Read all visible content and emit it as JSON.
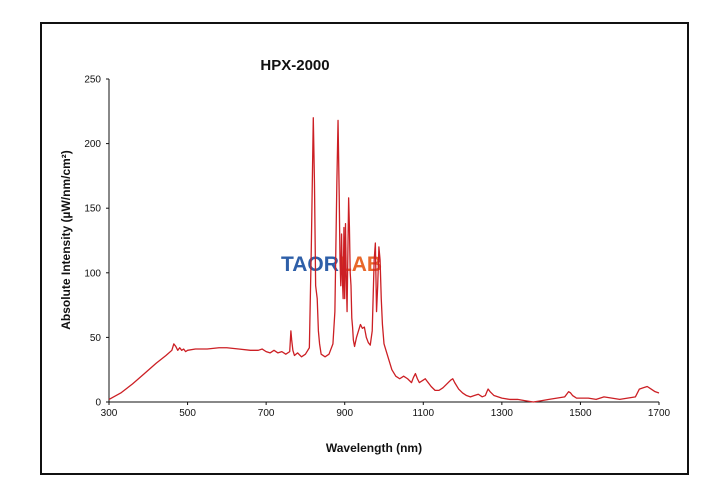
{
  "chart_data": {
    "type": "line",
    "title": "HPX-2000",
    "xlabel": "Wavelength (nm)",
    "ylabel": "Absolute Intensity  (µW/nm/cm²)",
    "xlim": [
      300,
      1700
    ],
    "ylim": [
      0,
      250
    ],
    "x_ticks": [
      "300",
      "500",
      "700",
      "900",
      "1100",
      "1300",
      "1500",
      "1700"
    ],
    "y_ticks": [
      "0",
      "50",
      "100",
      "150",
      "200",
      "250"
    ],
    "grid": false,
    "legend": "none",
    "line_color": "#cc1f24",
    "series": [
      {
        "x": [
          300,
          330,
          360,
          390,
          420,
          445,
          460,
          465,
          470,
          475,
          480,
          485,
          490,
          495,
          500,
          520,
          550,
          580,
          600,
          630,
          660,
          680,
          690,
          700,
          710,
          720,
          730,
          740,
          750,
          760,
          763,
          765,
          768,
          772,
          780,
          790,
          800,
          810,
          815,
          820,
          823,
          826,
          830,
          833,
          836,
          840,
          850,
          860,
          870,
          875,
          880,
          883,
          886,
          888,
          890,
          892,
          894,
          896,
          898,
          900,
          902,
          904,
          906,
          908,
          910,
          912,
          914,
          916,
          918,
          920,
          922,
          925,
          930,
          940,
          945,
          950,
          955,
          960,
          965,
          970,
          975,
          978,
          981,
          984,
          987,
          990,
          993,
          996,
          1000,
          1005,
          1010,
          1020,
          1030,
          1040,
          1050,
          1060,
          1070,
          1075,
          1080,
          1085,
          1090,
          1100,
          1105,
          1110,
          1120,
          1130,
          1140,
          1150,
          1160,
          1170,
          1175,
          1180,
          1190,
          1200,
          1210,
          1220,
          1230,
          1240,
          1250,
          1258,
          1262,
          1265,
          1270,
          1280,
          1300,
          1320,
          1340,
          1360,
          1380,
          1400,
          1420,
          1440,
          1460,
          1465,
          1470,
          1475,
          1480,
          1485,
          1490,
          1500,
          1520,
          1540,
          1560,
          1580,
          1600,
          1620,
          1640,
          1650,
          1660,
          1670,
          1680,
          1690,
          1700
        ],
        "values": [
          2,
          7,
          14,
          22,
          30,
          36,
          40,
          45,
          43,
          40,
          42,
          40,
          41,
          39,
          40,
          41,
          41,
          42,
          42,
          41,
          40,
          40,
          41,
          39,
          38,
          40,
          38,
          39,
          37,
          39,
          55,
          48,
          40,
          36,
          38,
          35,
          37,
          42,
          120,
          220,
          170,
          90,
          80,
          55,
          45,
          37,
          35,
          37,
          45,
          70,
          170,
          218,
          160,
          110,
          90,
          130,
          95,
          80,
          135,
          80,
          138,
          95,
          70,
          115,
          158,
          135,
          100,
          90,
          65,
          58,
          48,
          43,
          50,
          60,
          57,
          58,
          50,
          46,
          44,
          55,
          110,
          123,
          70,
          90,
          120,
          110,
          80,
          60,
          45,
          40,
          35,
          25,
          20,
          18,
          20,
          18,
          15,
          19,
          22,
          18,
          15,
          17,
          18,
          16,
          12,
          9,
          9,
          11,
          14,
          17,
          18,
          15,
          10,
          7,
          5,
          4,
          5,
          6,
          4,
          5,
          8,
          10,
          8,
          5,
          3,
          2,
          2,
          1,
          0,
          1,
          2,
          3,
          4,
          6,
          8,
          7,
          5,
          4,
          3,
          3,
          3,
          2,
          4,
          3,
          2,
          3,
          4,
          10,
          11,
          12,
          10,
          8,
          7
        ]
      }
    ]
  },
  "watermark": {
    "part1": "TAOR",
    "part2": "LAB",
    "color1": "#2e5fa8",
    "color2": "#e8682a"
  }
}
